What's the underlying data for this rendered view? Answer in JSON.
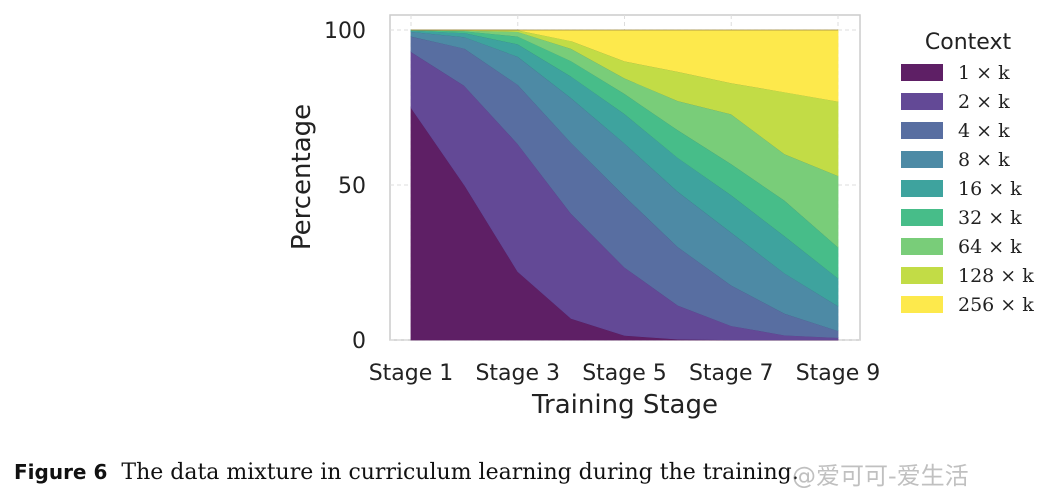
{
  "chart_data": {
    "type": "area",
    "stacked": true,
    "x": [
      "Stage 1",
      "Stage 2",
      "Stage 3",
      "Stage 4",
      "Stage 5",
      "Stage 6",
      "Stage 7",
      "Stage 8",
      "Stage 9"
    ],
    "xticks": [
      "Stage 1",
      "Stage 3",
      "Stage 5",
      "Stage 7",
      "Stage 9"
    ],
    "yticks": [
      0,
      50,
      100
    ],
    "ylim": [
      0,
      100
    ],
    "xlabel": "Training Stage",
    "ylabel": "Percentage",
    "legend_title": "Context",
    "legend_position": "right",
    "grid": true,
    "series": [
      {
        "name": "1 × k",
        "color": "#5e1f65",
        "values": [
          75,
          50,
          22,
          7,
          1.5,
          0.3,
          0.1,
          0.1,
          0.1
        ]
      },
      {
        "name": "2 × k",
        "color": "#634996",
        "values": [
          18,
          32,
          41,
          34,
          22,
          11,
          4.5,
          1.5,
          0.7
        ]
      },
      {
        "name": "4 × k",
        "color": "#586ea1",
        "values": [
          5,
          12,
          19,
          23,
          23,
          19,
          13,
          7,
          2.2
        ]
      },
      {
        "name": "8 × k",
        "color": "#4d8aa5",
        "values": [
          1.5,
          3.7,
          9,
          14.5,
          17,
          18,
          17,
          13,
          8
        ]
      },
      {
        "name": "16 × k",
        "color": "#3ea39e",
        "values": [
          0.4,
          1.3,
          4,
          7,
          9.5,
          11,
          12,
          12,
          9
        ]
      },
      {
        "name": "32 × k",
        "color": "#47bd89",
        "values": [
          0.1,
          0.6,
          2.5,
          5,
          6.5,
          9,
          10,
          11.5,
          10
        ]
      },
      {
        "name": "64 × k",
        "color": "#79cd79",
        "values": [
          0,
          0.2,
          1.5,
          4,
          5,
          9.5,
          16,
          15,
          23
        ]
      },
      {
        "name": "128 × k",
        "color": "#c2dc46",
        "values": [
          0,
          0.1,
          0.5,
          2.5,
          5.5,
          9.5,
          10,
          20,
          24
        ]
      },
      {
        "name": "256 × k",
        "color": "#fde94c",
        "values": [
          0,
          0,
          0,
          3.5,
          10,
          13.5,
          17,
          20,
          23
        ]
      }
    ]
  },
  "caption": {
    "label": "Figure 6",
    "text": "The data mixture in curriculum learning during the training."
  },
  "watermark": {
    "text": "@爱可可-爱生活"
  }
}
